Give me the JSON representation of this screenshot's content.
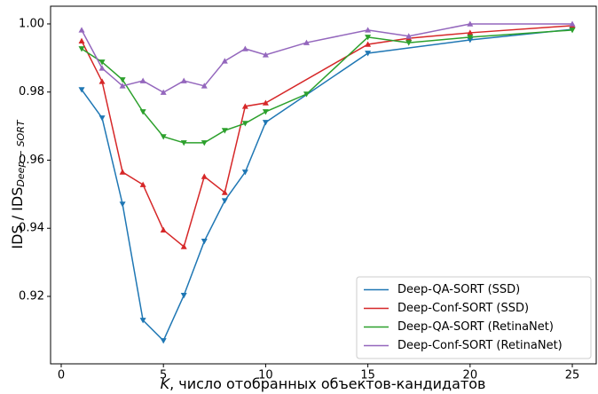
{
  "chart_data": {
    "type": "line",
    "xlabel": {
      "var": "K",
      "text": ", число отобранных объектов-кандидатов"
    },
    "ylabel": {
      "main": "IDS / IDS",
      "sub": "Deep − SORT"
    },
    "xlim": [
      -0.52,
      26.17
    ],
    "ylim": [
      0.9002,
      1.0052
    ],
    "xticks": [
      0,
      5,
      10,
      15,
      20,
      25
    ],
    "yticks": [
      0.92,
      0.94,
      0.96,
      0.98,
      {
        "value": 1.0,
        "label": "1.00"
      }
    ],
    "legend": "lower right",
    "series": [
      {
        "name": "Deep-QA-SORT (SSD)",
        "color": "#1f77b4",
        "marker": "v",
        "x": [
          1,
          2,
          3,
          4,
          5,
          6,
          7,
          8,
          9,
          10,
          15,
          20,
          25
        ],
        "values": [
          0.9807,
          0.9724,
          0.9471,
          0.913,
          0.907,
          0.9203,
          0.9362,
          0.9481,
          0.9565,
          0.9711,
          0.9914,
          0.9953,
          0.9984
        ]
      },
      {
        "name": "Deep-Conf-SORT (SSD)",
        "color": "#d62728",
        "marker": "^",
        "x": [
          1,
          2,
          3,
          4,
          5,
          6,
          7,
          8,
          9,
          10,
          15,
          17,
          20,
          25
        ],
        "values": [
          0.995,
          0.9831,
          0.9565,
          0.9528,
          0.9395,
          0.9346,
          0.9552,
          0.9505,
          0.9758,
          0.9768,
          0.994,
          0.9958,
          0.9974,
          0.9995
        ]
      },
      {
        "name": "Deep-QA-SORT (RetinaNet)",
        "color": "#2ca02c",
        "marker": "v",
        "x": [
          1,
          2,
          3,
          4,
          5,
          6,
          7,
          8,
          9,
          10,
          12,
          15,
          17,
          20,
          25
        ],
        "values": [
          0.9927,
          0.9888,
          0.9836,
          0.9742,
          0.9669,
          0.9651,
          0.9651,
          0.9687,
          0.9708,
          0.9742,
          0.9794,
          0.9961,
          0.9945,
          0.9961,
          0.9982
        ]
      },
      {
        "name": "Deep-Conf-SORT (RetinaNet)",
        "color": "#9467bd",
        "marker": "^",
        "x": [
          1,
          2,
          3,
          4,
          5,
          6,
          7,
          8,
          9,
          10,
          12,
          15,
          17,
          20,
          25
        ],
        "values": [
          0.9982,
          0.987,
          0.9818,
          0.9833,
          0.9799,
          0.9833,
          0.9818,
          0.9891,
          0.9927,
          0.9909,
          0.9945,
          0.9982,
          0.9964,
          1.0,
          1.0
        ]
      }
    ]
  }
}
